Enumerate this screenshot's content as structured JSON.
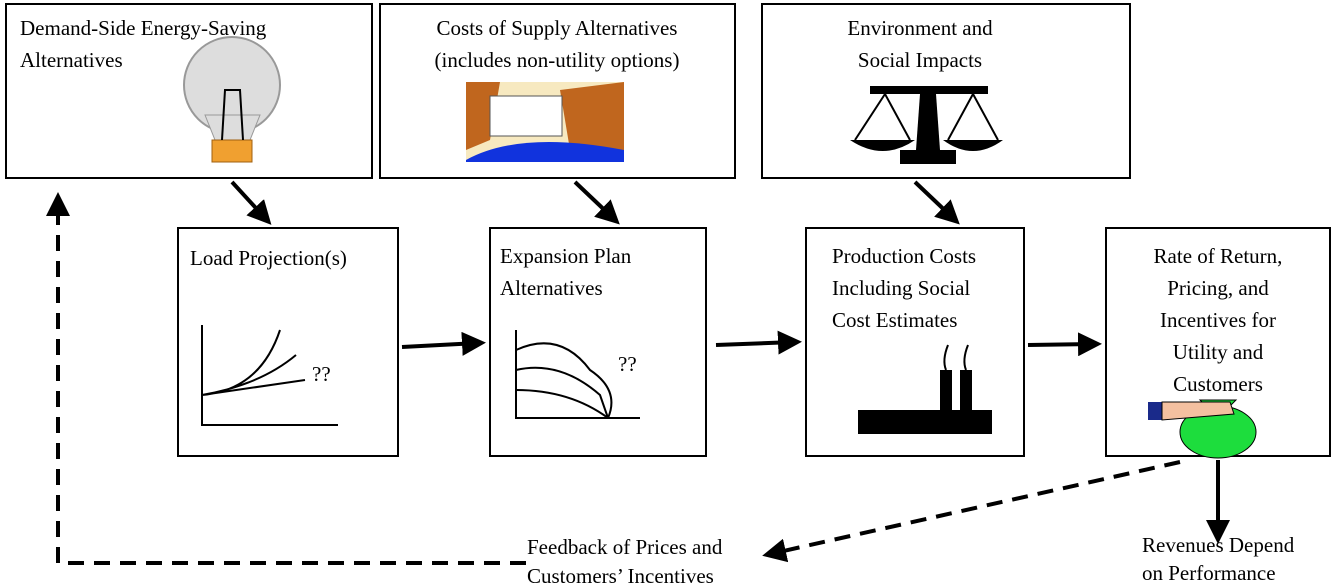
{
  "nodes": [
    {
      "label": [
        "Demand-Side Energy-Saving",
        "Alternatives"
      ]
    },
    {
      "label": [
        "Costs of Supply Alternatives",
        "(includes non-utility options)"
      ]
    },
    {
      "label": [
        "Environment and",
        "Social Impacts"
      ]
    },
    {
      "label": [
        "Load Projection(s)"
      ],
      "note": "??"
    },
    {
      "label": [
        "Expansion Plan",
        "Alternatives"
      ],
      "note": "??"
    },
    {
      "label": [
        "Production Costs",
        "Including Social",
        "Cost Estimates"
      ]
    },
    {
      "label": [
        "Rate of Return,",
        "Pricing, and",
        "Incentives for",
        "Utility and",
        "Customers"
      ]
    }
  ],
  "annotations": [
    {
      "label": [
        "Feedback of Prices and",
        "Customers’ Incentives"
      ]
    },
    {
      "label": [
        "Revenues Depend",
        "on Performance"
      ]
    }
  ]
}
